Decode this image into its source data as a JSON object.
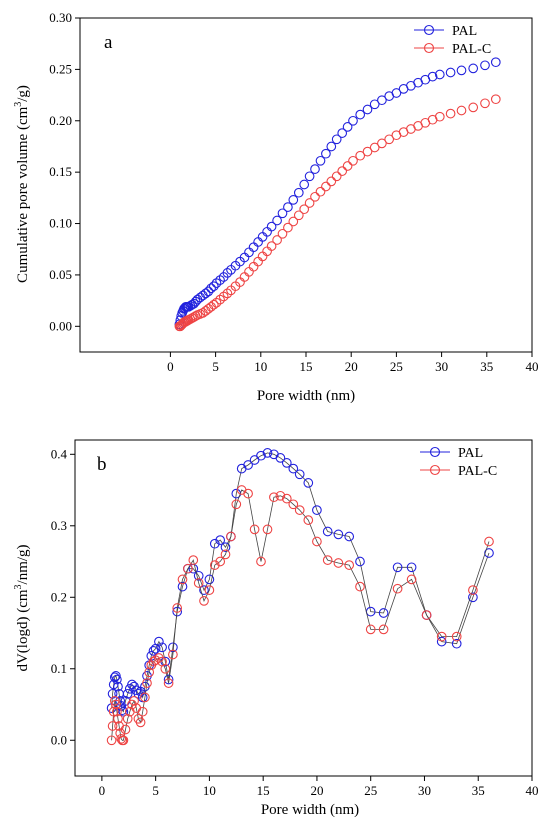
{
  "chart_data": [
    {
      "type": "scatter",
      "panel_label": "a",
      "xlabel": "Pore width (nm)",
      "ylabel": "Cumulative pore volume (cm3/g)",
      "ylabel_parts": {
        "pre": "Cumulative pore volume (cm",
        "sup": "3",
        "post": "/g)"
      },
      "xlim": [
        -10,
        40
      ],
      "ylim": [
        -0.025,
        0.3
      ],
      "xticks": [
        "0",
        "5",
        "10",
        "15",
        "20",
        "25",
        "30",
        "35",
        "40"
      ],
      "yticks": [
        "0.00",
        "0.05",
        "0.10",
        "0.15",
        "0.20",
        "0.25",
        "0.30"
      ],
      "legend_position": "top-right",
      "series": [
        {
          "name": "PAL",
          "color": "#2222dd",
          "x": [
            1.0,
            1.1,
            1.2,
            1.3,
            1.4,
            1.5,
            1.6,
            1.7,
            1.8,
            1.9,
            2.0,
            2.2,
            2.4,
            2.6,
            2.8,
            3.0,
            3.3,
            3.6,
            3.9,
            4.2,
            4.5,
            4.8,
            5.1,
            5.5,
            5.9,
            6.3,
            6.7,
            7.2,
            7.7,
            8.2,
            8.7,
            9.2,
            9.7,
            10.2,
            10.7,
            11.2,
            11.8,
            12.4,
            13.0,
            13.6,
            14.2,
            14.8,
            15.4,
            16.0,
            16.6,
            17.2,
            17.8,
            18.4,
            19.0,
            19.6,
            20.2,
            21.0,
            21.8,
            22.6,
            23.4,
            24.2,
            25.0,
            25.8,
            26.6,
            27.4,
            28.2,
            29.0,
            29.8,
            31.0,
            32.2,
            33.5,
            34.8,
            36.0
          ],
          "y": [
            0.002,
            0.006,
            0.01,
            0.013,
            0.015,
            0.017,
            0.018,
            0.019,
            0.019,
            0.019,
            0.019,
            0.02,
            0.021,
            0.022,
            0.024,
            0.026,
            0.028,
            0.03,
            0.032,
            0.034,
            0.037,
            0.039,
            0.042,
            0.045,
            0.048,
            0.052,
            0.055,
            0.059,
            0.063,
            0.067,
            0.072,
            0.077,
            0.082,
            0.087,
            0.092,
            0.097,
            0.103,
            0.11,
            0.116,
            0.123,
            0.13,
            0.138,
            0.146,
            0.153,
            0.161,
            0.168,
            0.175,
            0.182,
            0.188,
            0.194,
            0.2,
            0.206,
            0.211,
            0.216,
            0.22,
            0.224,
            0.227,
            0.231,
            0.234,
            0.237,
            0.24,
            0.243,
            0.245,
            0.247,
            0.249,
            0.251,
            0.254,
            0.257
          ]
        },
        {
          "name": "PAL-C",
          "color": "#ee4444",
          "x": [
            1.0,
            1.1,
            1.2,
            1.3,
            1.4,
            1.5,
            1.6,
            1.7,
            1.8,
            1.9,
            2.0,
            2.2,
            2.4,
            2.6,
            2.8,
            3.0,
            3.3,
            3.6,
            3.9,
            4.2,
            4.5,
            4.8,
            5.1,
            5.5,
            5.9,
            6.3,
            6.7,
            7.2,
            7.7,
            8.2,
            8.7,
            9.2,
            9.7,
            10.2,
            10.7,
            11.2,
            11.8,
            12.4,
            13.0,
            13.6,
            14.2,
            14.8,
            15.4,
            16.0,
            16.6,
            17.2,
            17.8,
            18.4,
            19.0,
            19.6,
            20.2,
            21.0,
            21.8,
            22.6,
            23.4,
            24.2,
            25.0,
            25.8,
            26.6,
            27.4,
            28.2,
            29.0,
            29.8,
            31.0,
            32.2,
            33.5,
            34.8,
            36.0
          ],
          "y": [
            0.0,
            0.0,
            0.001,
            0.002,
            0.003,
            0.004,
            0.004,
            0.005,
            0.005,
            0.006,
            0.006,
            0.007,
            0.008,
            0.009,
            0.01,
            0.011,
            0.012,
            0.013,
            0.015,
            0.017,
            0.019,
            0.021,
            0.023,
            0.026,
            0.029,
            0.032,
            0.035,
            0.039,
            0.043,
            0.048,
            0.053,
            0.058,
            0.063,
            0.068,
            0.073,
            0.078,
            0.084,
            0.09,
            0.096,
            0.102,
            0.108,
            0.114,
            0.12,
            0.126,
            0.131,
            0.136,
            0.141,
            0.146,
            0.151,
            0.156,
            0.161,
            0.166,
            0.17,
            0.174,
            0.178,
            0.182,
            0.186,
            0.189,
            0.192,
            0.195,
            0.198,
            0.201,
            0.204,
            0.207,
            0.21,
            0.213,
            0.217,
            0.221
          ]
        }
      ]
    },
    {
      "type": "line",
      "panel_label": "b",
      "xlabel": "Pore width (nm)",
      "ylabel": "dV(logd) (cm3/nm/g)",
      "ylabel_parts": {
        "pre": "dV(logd) (cm",
        "sup": "3",
        "post": "/nm/g)"
      },
      "xlim": [
        -2.5,
        40
      ],
      "ylim": [
        -0.05,
        0.42
      ],
      "xticks": [
        "0",
        "5",
        "10",
        "15",
        "20",
        "25",
        "30",
        "35",
        "40"
      ],
      "yticks": [
        "0.0",
        "0.1",
        "0.2",
        "0.3",
        "0.4"
      ],
      "legend_position": "top-right",
      "series": [
        {
          "name": "PAL",
          "color": "#2222dd",
          "x": [
            0.9,
            1.0,
            1.1,
            1.2,
            1.3,
            1.4,
            1.5,
            1.6,
            1.7,
            1.8,
            1.9,
            2.0,
            2.2,
            2.4,
            2.6,
            2.8,
            3.0,
            3.2,
            3.4,
            3.6,
            3.8,
            4.0,
            4.2,
            4.4,
            4.6,
            4.8,
            5.0,
            5.3,
            5.6,
            5.9,
            6.2,
            6.6,
            7.0,
            7.5,
            8.0,
            8.5,
            9.0,
            9.5,
            10.0,
            10.5,
            11.0,
            11.5,
            12.0,
            12.5,
            13.0,
            13.6,
            14.2,
            14.8,
            15.4,
            16.0,
            16.6,
            17.2,
            17.8,
            18.4,
            19.2,
            20.0,
            21.0,
            22.0,
            23.0,
            24.0,
            25.0,
            26.2,
            27.5,
            28.8,
            30.2,
            31.6,
            33.0,
            34.5,
            36.0
          ],
          "y": [
            0.045,
            0.065,
            0.078,
            0.088,
            0.09,
            0.085,
            0.075,
            0.065,
            0.055,
            0.048,
            0.042,
            0.04,
            0.055,
            0.065,
            0.072,
            0.078,
            0.075,
            0.07,
            0.065,
            0.068,
            0.06,
            0.075,
            0.09,
            0.105,
            0.118,
            0.125,
            0.128,
            0.138,
            0.13,
            0.11,
            0.085,
            0.13,
            0.18,
            0.215,
            0.24,
            0.24,
            0.23,
            0.21,
            0.225,
            0.275,
            0.28,
            0.27,
            0.285,
            0.345,
            0.38,
            0.385,
            0.392,
            0.398,
            0.402,
            0.4,
            0.395,
            0.388,
            0.38,
            0.372,
            0.36,
            0.322,
            0.292,
            0.288,
            0.285,
            0.25,
            0.18,
            0.178,
            0.242,
            0.242,
            0.175,
            0.138,
            0.135,
            0.2,
            0.262
          ]
        },
        {
          "name": "PAL-C",
          "color": "#ee4444",
          "x": [
            0.9,
            1.0,
            1.1,
            1.2,
            1.3,
            1.4,
            1.5,
            1.6,
            1.7,
            1.8,
            1.9,
            2.0,
            2.2,
            2.4,
            2.6,
            2.8,
            3.0,
            3.2,
            3.4,
            3.6,
            3.8,
            4.0,
            4.2,
            4.4,
            4.6,
            4.8,
            5.0,
            5.3,
            5.6,
            5.9,
            6.2,
            6.6,
            7.0,
            7.5,
            8.0,
            8.5,
            9.0,
            9.5,
            10.0,
            10.5,
            11.0,
            11.5,
            12.0,
            12.5,
            13.0,
            13.6,
            14.2,
            14.8,
            15.4,
            16.0,
            16.6,
            17.2,
            17.8,
            18.4,
            19.2,
            20.0,
            21.0,
            22.0,
            23.0,
            24.0,
            25.0,
            26.2,
            27.5,
            28.8,
            30.2,
            31.6,
            33.0,
            34.5,
            36.0
          ],
          "y": [
            0.0,
            0.02,
            0.04,
            0.055,
            0.05,
            0.04,
            0.03,
            0.02,
            0.01,
            0.002,
            0.0,
            0.0,
            0.015,
            0.03,
            0.04,
            0.05,
            0.055,
            0.045,
            0.03,
            0.025,
            0.04,
            0.06,
            0.08,
            0.095,
            0.105,
            0.11,
            0.112,
            0.115,
            0.11,
            0.1,
            0.08,
            0.12,
            0.185,
            0.225,
            0.24,
            0.252,
            0.22,
            0.195,
            0.21,
            0.245,
            0.25,
            0.26,
            0.285,
            0.33,
            0.35,
            0.345,
            0.295,
            0.25,
            0.295,
            0.34,
            0.342,
            0.338,
            0.33,
            0.322,
            0.308,
            0.278,
            0.252,
            0.248,
            0.245,
            0.215,
            0.155,
            0.155,
            0.212,
            0.225,
            0.175,
            0.145,
            0.145,
            0.21,
            0.278
          ]
        }
      ]
    }
  ]
}
